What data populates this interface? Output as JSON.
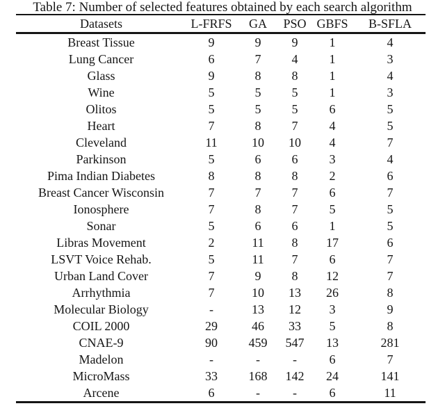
{
  "page": {
    "caption": "Table 7: Number of selected features obtained by each search algorithm"
  },
  "table": {
    "columns": [
      "Datasets",
      "L-FRFS",
      "GA",
      "PSO",
      "GBFS",
      "B-SFLA"
    ],
    "rows": [
      [
        "Breast Tissue",
        "9",
        "9",
        "9",
        "1",
        "4"
      ],
      [
        "Lung Cancer",
        "6",
        "7",
        "4",
        "1",
        "3"
      ],
      [
        "Glass",
        "9",
        "8",
        "8",
        "1",
        "4"
      ],
      [
        "Wine",
        "5",
        "5",
        "5",
        "1",
        "3"
      ],
      [
        "Olitos",
        "5",
        "5",
        "5",
        "6",
        "5"
      ],
      [
        "Heart",
        "7",
        "8",
        "7",
        "4",
        "5"
      ],
      [
        "Cleveland",
        "11",
        "10",
        "10",
        "4",
        "7"
      ],
      [
        "Parkinson",
        "5",
        "6",
        "6",
        "3",
        "4"
      ],
      [
        "Pima Indian Diabetes",
        "8",
        "8",
        "8",
        "2",
        "6"
      ],
      [
        "Breast Cancer Wisconsin",
        "7",
        "7",
        "7",
        "6",
        "7"
      ],
      [
        "Ionosphere",
        "7",
        "8",
        "7",
        "5",
        "5"
      ],
      [
        "Sonar",
        "5",
        "6",
        "6",
        "1",
        "5"
      ],
      [
        "Libras Movement",
        "2",
        "11",
        "8",
        "17",
        "6"
      ],
      [
        "LSVT Voice Rehab.",
        "5",
        "11",
        "7",
        "6",
        "7"
      ],
      [
        "Urban Land Cover",
        "7",
        "9",
        "8",
        "12",
        "7"
      ],
      [
        "Arrhythmia",
        "7",
        "10",
        "13",
        "26",
        "8"
      ],
      [
        "Molecular Biology",
        "-",
        "13",
        "12",
        "3",
        "9"
      ],
      [
        "COIL 2000",
        "29",
        "46",
        "33",
        "5",
        "8"
      ],
      [
        "CNAE-9",
        "90",
        "459",
        "547",
        "13",
        "281"
      ],
      [
        "Madelon",
        "-",
        "-",
        "-",
        "6",
        "7"
      ],
      [
        "MicroMass",
        "33",
        "168",
        "142",
        "24",
        "141"
      ],
      [
        "Arcene",
        "6",
        "-",
        "-",
        "6",
        "11"
      ]
    ]
  },
  "colors": {
    "text": "#151515",
    "rule": "#151515",
    "background": "#ffffff"
  }
}
